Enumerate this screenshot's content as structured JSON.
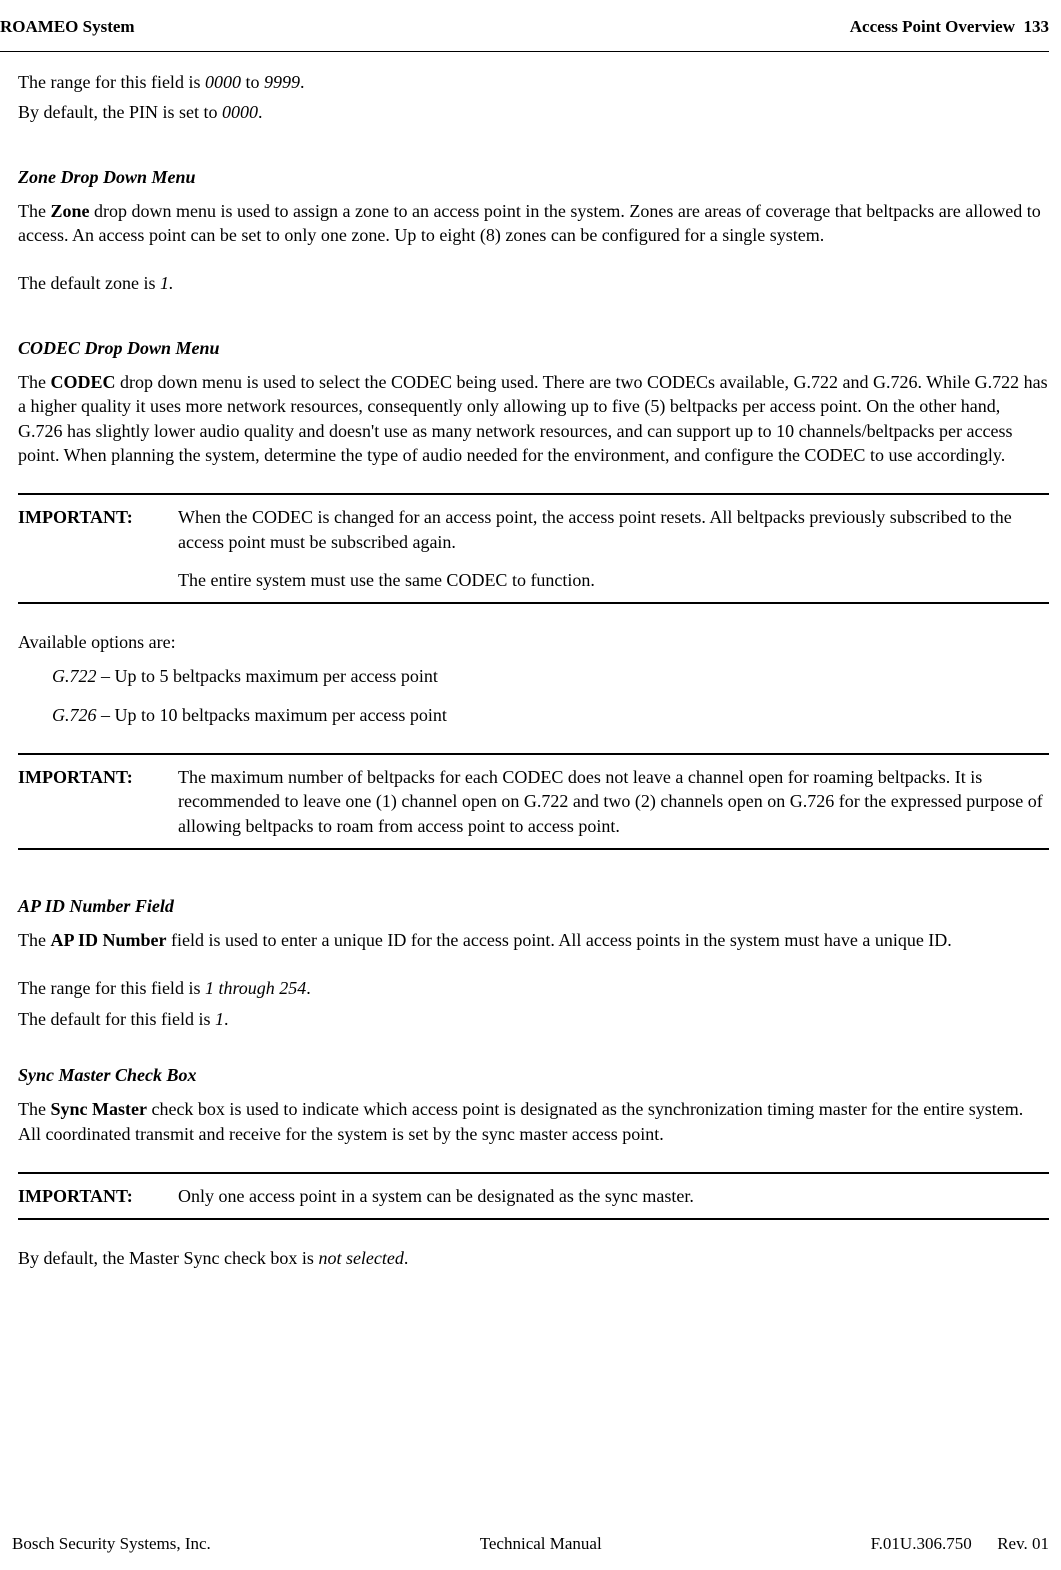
{
  "header": {
    "left": "ROAMEO System",
    "right_title": "Access Point Overview",
    "page_number": "133"
  },
  "intro": {
    "range_line_prefix": "The range for this field is ",
    "range_from": "0000",
    "range_to_word": " to ",
    "range_to": "9999",
    "range_period": ".",
    "default_line_prefix": "By default, the PIN is set to ",
    "default_value": "0000",
    "default_period": "."
  },
  "zone": {
    "heading": "Zone Drop Down Menu",
    "para_prefix": "The ",
    "para_bold": "Zone",
    "para_rest": " drop down menu is used to assign a zone to an access point in the system. Zones are areas of coverage that beltpacks are allowed to access. An access point can be set to only one zone. Up to eight (8) zones can be configured for a single system.",
    "default_prefix": "The default zone is ",
    "default_value": "1.",
    "default_suffix": ""
  },
  "codec": {
    "heading": "CODEC Drop Down Menu",
    "para_prefix": "The ",
    "para_bold": "CODEC",
    "para_rest": " drop down menu is used to select the CODEC being used. There are two CODECs available, G.722 and G.726. While G.722 has a higher quality it uses more network resources, consequently only allowing up to five (5) beltpacks per access point. On the other hand, G.726 has slightly lower audio quality and doesn't use as many network resources, and can support up to 10 channels/beltpacks per access point. When planning the system, determine the type of audio needed for the environment, and configure the CODEC to use accordingly."
  },
  "important1": {
    "label": "IMPORTANT:",
    "line1": "When the CODEC is changed for an access point, the access point resets. All beltpacks previously subscribed to the access point must be subscribed again.",
    "line2": "The entire system must use the same CODEC to function."
  },
  "options": {
    "intro": "Available options are:",
    "items": [
      {
        "name": "G.722",
        "desc": " – Up to 5 beltpacks maximum per access point"
      },
      {
        "name": "G.726",
        "desc": " – Up to 10 beltpacks maximum per access point"
      }
    ]
  },
  "important2": {
    "label": "IMPORTANT:",
    "text": "The maximum number of beltpacks for each CODEC does not leave a channel open for roaming beltpacks. It is recommended to leave one (1) channel open on G.722 and two (2) channels open on G.726 for the expressed purpose of allowing beltpacks to roam from access point to access point."
  },
  "apid": {
    "heading": "AP ID Number Field",
    "para_prefix": "The ",
    "para_bold": "AP ID Number",
    "para_rest": " field is used to enter a unique ID for the access point. All access points in the system must have a unique ID.",
    "range_prefix": "The range for this field is ",
    "range_value": "1 through 254",
    "range_period": ".",
    "default_prefix": "The default for this field is ",
    "default_value": "1",
    "default_period": "."
  },
  "sync": {
    "heading": "Sync Master Check Box",
    "para_prefix": "The ",
    "para_bold": "Sync Master",
    "para_rest": " check box is used to indicate which access point is designated as the synchronization timing master for the entire system. All coordinated transmit and receive for the system is set by the sync master access point."
  },
  "important3": {
    "label": "IMPORTANT:",
    "text": "Only one access point in a system can be designated as the sync master."
  },
  "sync_default": {
    "prefix": "By default, the Master Sync check box is ",
    "value": "not selected",
    "period": "."
  },
  "footer": {
    "left": "Bosch Security Systems, Inc.",
    "center": "Technical Manual",
    "doc_number": "F.01U.306.750",
    "rev": "Rev. 01"
  }
}
